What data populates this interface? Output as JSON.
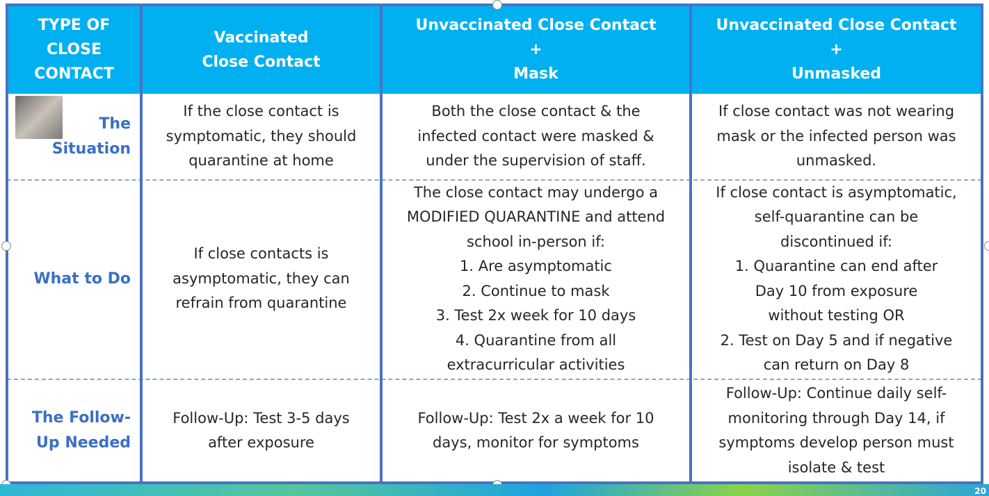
{
  "table": {
    "header": [
      [
        "TYPE OF",
        "CLOSE",
        "CONTACT"
      ],
      [
        "Vaccinated",
        "Close Contact"
      ],
      [
        "Unvaccinated Close Contact",
        "+",
        "Mask"
      ],
      [
        "Unvaccinated Close Contact",
        "+",
        "Unmasked"
      ]
    ],
    "rows": [
      [
        [
          "The",
          "Situation"
        ],
        [
          "If the close contact is",
          "symptomatic, they should",
          "quarantine at home"
        ],
        [
          "Both the close contact & the",
          "infected contact were masked &",
          "under the supervision of staff."
        ],
        [
          "If close contact was not wearing",
          "mask or the infected person was",
          "unmasked."
        ]
      ],
      [
        [
          "What to Do"
        ],
        [
          "If close contacts is",
          "asymptomatic, they can",
          "refrain from quarantine"
        ],
        [
          "The close contact may undergo a",
          "MODIFIED QUARANTINE and attend",
          "school in-person if:",
          "1. Are asymptomatic",
          "2. Continue to mask",
          "3. Test 2x week for 10 days",
          "4. Quarantine from all",
          "extracurricular activities"
        ],
        [
          "If close contact is asymptomatic,",
          "self-quarantine can be",
          "discontinued if:",
          "1.    Quarantine can end after",
          "Day 10 from exposure",
          "without testing OR",
          "2.    Test on Day 5 and if negative",
          "can return on Day 8"
        ]
      ],
      [
        [
          "The Follow-",
          "Up Needed"
        ],
        [
          "Follow-Up: Test 3-5 days",
          "after exposure"
        ],
        [
          "Follow-Up: Test 2x a week for 10",
          "days, monitor for symptoms"
        ],
        [
          "Follow-Up: Continue daily self-",
          "monitoring through Day 14, if",
          "symptoms develop person must",
          "isolate & test"
        ]
      ]
    ]
  },
  "slide_number": "20"
}
